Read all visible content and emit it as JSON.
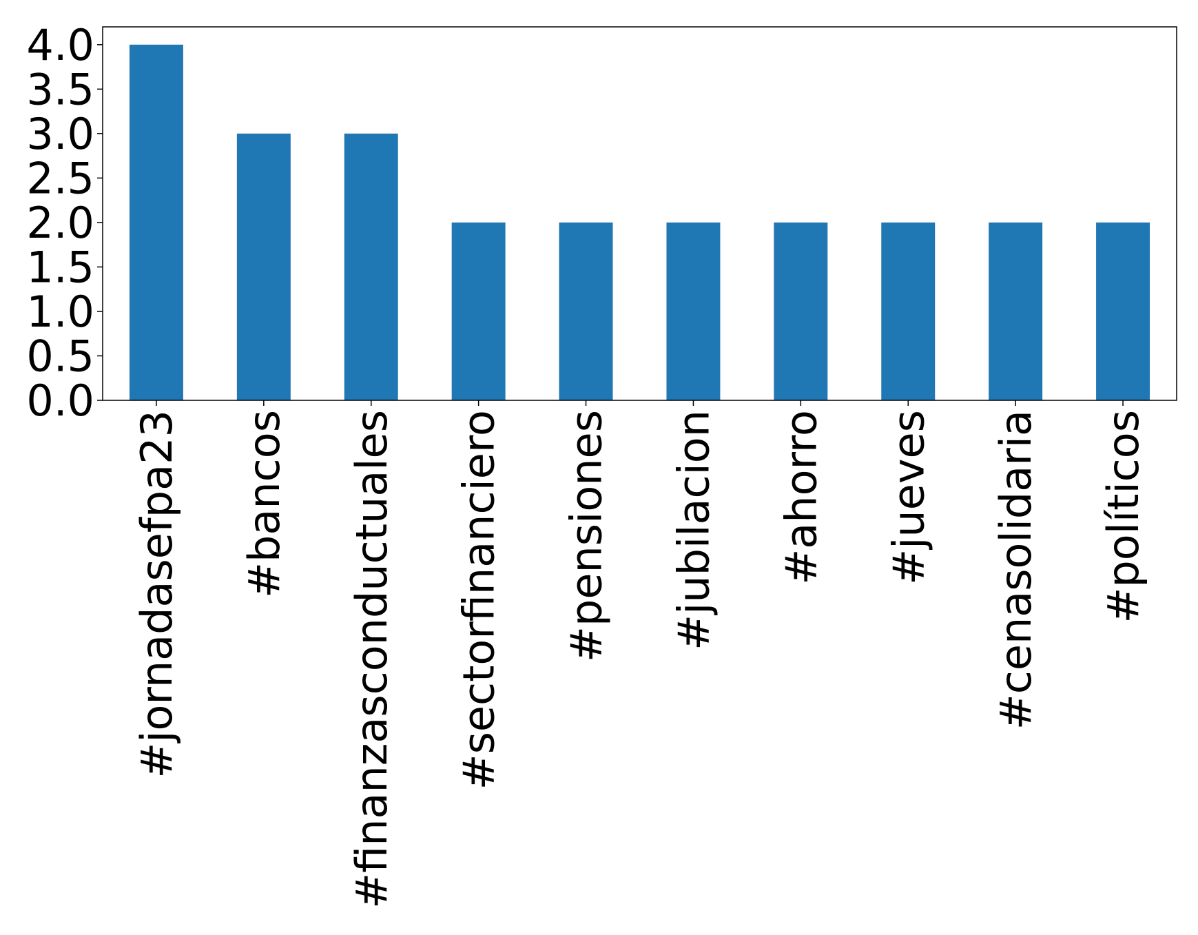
{
  "chart_data": {
    "type": "bar",
    "categories": [
      "#jornadasefpa23",
      "#bancos",
      "#finanzasconductuales",
      "#sectorfinanciero",
      "#pensiones",
      "#jubilacion",
      "#ahorro",
      "#jueves",
      "#cenasolidaria",
      "#políticos"
    ],
    "values": [
      4,
      3,
      3,
      2,
      2,
      2,
      2,
      2,
      2,
      2
    ],
    "color": "#1f77b4",
    "ylim": [
      0,
      4.2
    ],
    "yticks": [
      {
        "value": 0,
        "label": "0.0"
      },
      {
        "value": 0.5,
        "label": "0.5"
      },
      {
        "value": 1,
        "label": "1.0"
      },
      {
        "value": 1.5,
        "label": "1.5"
      },
      {
        "value": 2,
        "label": "2.0"
      },
      {
        "value": 2.5,
        "label": "2.5"
      },
      {
        "value": 3,
        "label": "3.0"
      },
      {
        "value": 3.5,
        "label": "3.5"
      },
      {
        "value": 4,
        "label": "4.0"
      }
    ],
    "grid": false
  }
}
